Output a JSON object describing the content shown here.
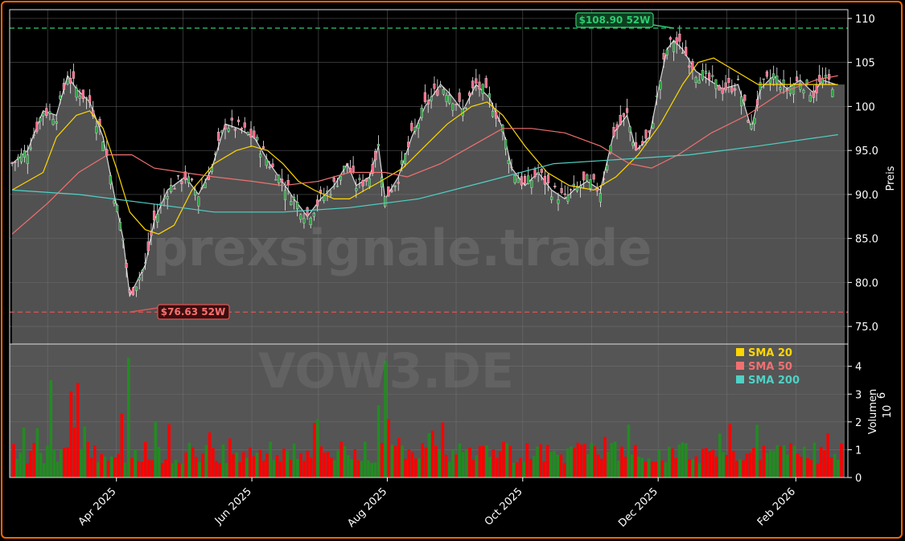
{
  "chart_data": [
    {
      "type": "candlestick",
      "title": "",
      "ylabel": "Preis",
      "ylim": [
        73.0,
        111.0
      ],
      "yticks": [
        "75.0",
        "80.0",
        "85.0",
        "90.0",
        "95.0",
        "100",
        "105",
        "110"
      ],
      "xticks": [
        "Apr 2025",
        "Jun 2025",
        "Aug 2025",
        "Oct 2025",
        "Dec 2025",
        "Feb 2026"
      ],
      "x_range": [
        "2025-02-13",
        "2026-02-23"
      ],
      "high_52w": {
        "value": 108.9,
        "label": "$108.90 52W",
        "date": "2025-12-08"
      },
      "low_52w": {
        "value": 76.63,
        "label": "$76.63 52W",
        "date": "2025-04-07"
      },
      "close_series": [
        {
          "x": "2025-02-13",
          "y": 93.5
        },
        {
          "x": "2025-02-20",
          "y": 95.0
        },
        {
          "x": "2025-02-27",
          "y": 99.5
        },
        {
          "x": "2025-03-05",
          "y": 99.0
        },
        {
          "x": "2025-03-10",
          "y": 103.5
        },
        {
          "x": "2025-03-14",
          "y": 102.0
        },
        {
          "x": "2025-03-20",
          "y": 100.5
        },
        {
          "x": "2025-03-26",
          "y": 96.5
        },
        {
          "x": "2025-03-31",
          "y": 90.0
        },
        {
          "x": "2025-04-04",
          "y": 85.0
        },
        {
          "x": "2025-04-07",
          "y": 78.5
        },
        {
          "x": "2025-04-10",
          "y": 80.0
        },
        {
          "x": "2025-04-14",
          "y": 82.0
        },
        {
          "x": "2025-04-18",
          "y": 87.0
        },
        {
          "x": "2025-04-24",
          "y": 90.5
        },
        {
          "x": "2025-05-02",
          "y": 92.0
        },
        {
          "x": "2025-05-08",
          "y": 90.0
        },
        {
          "x": "2025-05-14",
          "y": 93.0
        },
        {
          "x": "2025-05-20",
          "y": 98.0
        },
        {
          "x": "2025-05-26",
          "y": 97.5
        },
        {
          "x": "2025-06-02",
          "y": 96.5
        },
        {
          "x": "2025-06-09",
          "y": 93.5
        },
        {
          "x": "2025-06-16",
          "y": 91.0
        },
        {
          "x": "2025-06-20",
          "y": 89.5
        },
        {
          "x": "2025-06-26",
          "y": 87.5
        },
        {
          "x": "2025-07-02",
          "y": 89.5
        },
        {
          "x": "2025-07-08",
          "y": 91.0
        },
        {
          "x": "2025-07-14",
          "y": 93.5
        },
        {
          "x": "2025-07-18",
          "y": 91.0
        },
        {
          "x": "2025-07-24",
          "y": 92.0
        },
        {
          "x": "2025-07-28",
          "y": 95.5
        },
        {
          "x": "2025-07-31",
          "y": 89.5
        },
        {
          "x": "2025-08-06",
          "y": 92.0
        },
        {
          "x": "2025-08-12",
          "y": 96.5
        },
        {
          "x": "2025-08-18",
          "y": 100.0
        },
        {
          "x": "2025-08-25",
          "y": 102.5
        },
        {
          "x": "2025-08-29",
          "y": 101.5
        },
        {
          "x": "2025-09-04",
          "y": 99.5
        },
        {
          "x": "2025-09-10",
          "y": 102.5
        },
        {
          "x": "2025-09-16",
          "y": 101.0
        },
        {
          "x": "2025-09-22",
          "y": 97.5
        },
        {
          "x": "2025-09-26",
          "y": 93.0
        },
        {
          "x": "2025-10-02",
          "y": 91.0
        },
        {
          "x": "2025-10-08",
          "y": 92.5
        },
        {
          "x": "2025-10-14",
          "y": 90.5
        },
        {
          "x": "2025-10-20",
          "y": 89.5
        },
        {
          "x": "2025-10-24",
          "y": 90.5
        },
        {
          "x": "2025-10-30",
          "y": 91.5
        },
        {
          "x": "2025-11-05",
          "y": 90.5
        },
        {
          "x": "2025-11-11",
          "y": 97.0
        },
        {
          "x": "2025-11-17",
          "y": 99.0
        },
        {
          "x": "2025-11-21",
          "y": 95.0
        },
        {
          "x": "2025-11-27",
          "y": 96.5
        },
        {
          "x": "2025-12-02",
          "y": 103.0
        },
        {
          "x": "2025-12-05",
          "y": 106.5
        },
        {
          "x": "2025-12-08",
          "y": 107.5
        },
        {
          "x": "2025-12-12",
          "y": 106.5
        },
        {
          "x": "2025-12-18",
          "y": 104.0
        },
        {
          "x": "2025-12-24",
          "y": 103.0
        },
        {
          "x": "2025-12-30",
          "y": 102.0
        },
        {
          "x": "2026-01-06",
          "y": 102.5
        },
        {
          "x": "2026-01-12",
          "y": 97.5
        },
        {
          "x": "2026-01-16",
          "y": 102.0
        },
        {
          "x": "2026-01-22",
          "y": 103.5
        },
        {
          "x": "2026-01-28",
          "y": 102.0
        },
        {
          "x": "2026-02-03",
          "y": 103.0
        },
        {
          "x": "2026-02-09",
          "y": 101.5
        },
        {
          "x": "2026-02-13",
          "y": 103.0
        },
        {
          "x": "2026-02-19",
          "y": 102.5
        }
      ],
      "series": [
        {
          "name": "SMA 20",
          "color": "#ffd700",
          "points": [
            {
              "x": "2025-02-13",
              "y": 90.5
            },
            {
              "x": "2025-02-27",
              "y": 92.5
            },
            {
              "x": "2025-03-05",
              "y": 96.5
            },
            {
              "x": "2025-03-14",
              "y": 99.0
            },
            {
              "x": "2025-03-20",
              "y": 99.5
            },
            {
              "x": "2025-03-26",
              "y": 97.5
            },
            {
              "x": "2025-04-01",
              "y": 93.0
            },
            {
              "x": "2025-04-07",
              "y": 88.0
            },
            {
              "x": "2025-04-14",
              "y": 86.0
            },
            {
              "x": "2025-04-20",
              "y": 85.5
            },
            {
              "x": "2025-04-27",
              "y": 86.5
            },
            {
              "x": "2025-05-05",
              "y": 90.5
            },
            {
              "x": "2025-05-15",
              "y": 93.5
            },
            {
              "x": "2025-05-25",
              "y": 95.0
            },
            {
              "x": "2025-06-01",
              "y": 95.5
            },
            {
              "x": "2025-06-08",
              "y": 95.0
            },
            {
              "x": "2025-06-15",
              "y": 93.5
            },
            {
              "x": "2025-06-22",
              "y": 91.5
            },
            {
              "x": "2025-06-29",
              "y": 90.5
            },
            {
              "x": "2025-07-08",
              "y": 89.5
            },
            {
              "x": "2025-07-15",
              "y": 89.5
            },
            {
              "x": "2025-07-22",
              "y": 90.5
            },
            {
              "x": "2025-07-29",
              "y": 91.5
            },
            {
              "x": "2025-08-08",
              "y": 93.0
            },
            {
              "x": "2025-08-18",
              "y": 95.5
            },
            {
              "x": "2025-08-28",
              "y": 98.0
            },
            {
              "x": "2025-09-08",
              "y": 100.0
            },
            {
              "x": "2025-09-15",
              "y": 100.5
            },
            {
              "x": "2025-09-22",
              "y": 99.0
            },
            {
              "x": "2025-10-02",
              "y": 95.5
            },
            {
              "x": "2025-10-12",
              "y": 92.5
            },
            {
              "x": "2025-10-22",
              "y": 91.0
            },
            {
              "x": "2025-11-02",
              "y": 90.5
            },
            {
              "x": "2025-11-12",
              "y": 92.0
            },
            {
              "x": "2025-11-22",
              "y": 94.5
            },
            {
              "x": "2025-12-02",
              "y": 98.0
            },
            {
              "x": "2025-12-12",
              "y": 102.5
            },
            {
              "x": "2025-12-19",
              "y": 105.0
            },
            {
              "x": "2025-12-26",
              "y": 105.5
            },
            {
              "x": "2026-01-05",
              "y": 104.0
            },
            {
              "x": "2026-01-15",
              "y": 102.5
            },
            {
              "x": "2026-01-25",
              "y": 102.5
            },
            {
              "x": "2026-02-04",
              "y": 102.5
            },
            {
              "x": "2026-02-14",
              "y": 102.5
            },
            {
              "x": "2026-02-20",
              "y": 102.5
            }
          ]
        },
        {
          "name": "SMA 50",
          "color": "#f07070",
          "points": [
            {
              "x": "2025-02-13",
              "y": 85.5
            },
            {
              "x": "2025-03-01",
              "y": 89.0
            },
            {
              "x": "2025-03-15",
              "y": 92.5
            },
            {
              "x": "2025-03-28",
              "y": 94.5
            },
            {
              "x": "2025-04-08",
              "y": 94.5
            },
            {
              "x": "2025-04-18",
              "y": 93.0
            },
            {
              "x": "2025-05-01",
              "y": 92.5
            },
            {
              "x": "2025-05-15",
              "y": 92.0
            },
            {
              "x": "2025-06-01",
              "y": 91.5
            },
            {
              "x": "2025-06-15",
              "y": 91.0
            },
            {
              "x": "2025-07-01",
              "y": 91.5
            },
            {
              "x": "2025-07-15",
              "y": 92.5
            },
            {
              "x": "2025-07-31",
              "y": 92.5
            },
            {
              "x": "2025-08-10",
              "y": 92.0
            },
            {
              "x": "2025-08-25",
              "y": 93.5
            },
            {
              "x": "2025-09-08",
              "y": 95.5
            },
            {
              "x": "2025-09-22",
              "y": 97.5
            },
            {
              "x": "2025-10-05",
              "y": 97.5
            },
            {
              "x": "2025-10-20",
              "y": 97.0
            },
            {
              "x": "2025-11-05",
              "y": 95.5
            },
            {
              "x": "2025-11-18",
              "y": 93.5
            },
            {
              "x": "2025-11-28",
              "y": 93.0
            },
            {
              "x": "2025-12-10",
              "y": 94.5
            },
            {
              "x": "2025-12-25",
              "y": 97.0
            },
            {
              "x": "2026-01-10",
              "y": 99.0
            },
            {
              "x": "2026-01-25",
              "y": 101.5
            },
            {
              "x": "2026-02-10",
              "y": 103.0
            },
            {
              "x": "2026-02-20",
              "y": 103.5
            }
          ]
        },
        {
          "name": "SMA 200",
          "color": "#4fd1c5",
          "points": [
            {
              "x": "2025-02-13",
              "y": 90.5
            },
            {
              "x": "2025-03-15",
              "y": 90.0
            },
            {
              "x": "2025-04-15",
              "y": 89.0
            },
            {
              "x": "2025-05-15",
              "y": 88.0
            },
            {
              "x": "2025-06-15",
              "y": 88.0
            },
            {
              "x": "2025-07-15",
              "y": 88.5
            },
            {
              "x": "2025-08-15",
              "y": 89.5
            },
            {
              "x": "2025-09-15",
              "y": 91.5
            },
            {
              "x": "2025-10-15",
              "y": 93.5
            },
            {
              "x": "2025-11-15",
              "y": 94.0
            },
            {
              "x": "2025-12-15",
              "y": 94.5
            },
            {
              "x": "2026-01-15",
              "y": 95.5
            },
            {
              "x": "2026-02-20",
              "y": 96.8
            }
          ]
        }
      ],
      "legend_position": "top-right",
      "grid": true
    },
    {
      "type": "bar",
      "title": "",
      "ylabel": "Volumen",
      "y_multiplier": "10",
      "y_multiplier_exp": "6",
      "ylim": [
        0,
        4.8
      ],
      "yticks": [
        "0",
        "1",
        "2",
        "3",
        "4"
      ],
      "volume_bars": [
        {
          "x": "2025-03-14",
          "v": 3.4,
          "dir": "down"
        },
        {
          "x": "2025-03-03",
          "v": 3.5,
          "dir": "up"
        },
        {
          "x": "2025-04-07",
          "v": 4.3,
          "dir": "up"
        },
        {
          "x": "2025-04-03",
          "v": 2.3,
          "dir": "down"
        },
        {
          "x": "2025-03-11",
          "v": 3.1,
          "dir": "down"
        },
        {
          "x": "2025-07-31",
          "v": 4.2,
          "dir": "up"
        },
        {
          "x": "2025-07-28",
          "v": 2.6,
          "dir": "up"
        },
        {
          "x": "2025-08-01",
          "v": 2.1,
          "dir": "down"
        },
        {
          "x": "2025-07-01",
          "v": 2.1,
          "dir": "up"
        },
        {
          "x": "2026-01-14",
          "v": 1.9,
          "dir": "up"
        }
      ],
      "grid": true
    }
  ],
  "watermark": {
    "line1": "prexsignale.trade",
    "line2": "VOW3.DE"
  },
  "colors": {
    "up": "#228b22",
    "down": "#ff0000",
    "background": "#000000",
    "plot_bg": "#555555",
    "frame": "#ff6600"
  }
}
